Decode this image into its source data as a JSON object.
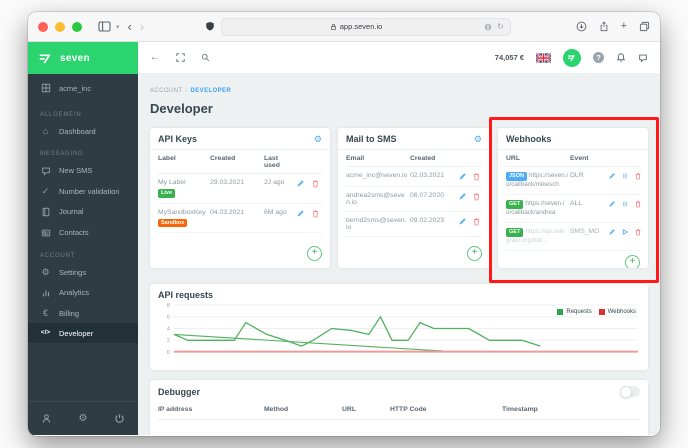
{
  "colors": {
    "brand_green": "#2bd46f",
    "sidebar_bg": "#2e3c43",
    "highlight_red": "#ff1a1a",
    "link_blue": "#3ba0f2",
    "badge_live": "#37b24d",
    "badge_sandbox": "#f76707",
    "badge_json": "#4dabf7",
    "badge_get": "#37b24d"
  },
  "icons": {
    "back_arrow": "←",
    "nav_back": "‹",
    "nav_forward": "›",
    "chevron_down": "▾",
    "reload": "↻",
    "plus": "+",
    "check": "✓",
    "home": "⌂",
    "gear": "⚙",
    "euro": "€",
    "code": "</>",
    "question": "?"
  },
  "browser": {
    "url": "app.seven.io"
  },
  "app_header": {
    "logo_text": "seven",
    "balance": "74,057 €"
  },
  "sidebar": {
    "workspace": "acme_inc",
    "sections": [
      {
        "title": "ALLGEMEIN",
        "items": [
          {
            "label": "Dashboard"
          }
        ]
      },
      {
        "title": "MESSAGING",
        "items": [
          {
            "label": "New SMS"
          },
          {
            "label": "Number validation"
          },
          {
            "label": "Journal"
          },
          {
            "label": "Contacts"
          }
        ]
      },
      {
        "title": "ACCOUNT",
        "items": [
          {
            "label": "Settings"
          },
          {
            "label": "Analytics"
          },
          {
            "label": "Billing"
          },
          {
            "label": "Developer",
            "active": true
          }
        ]
      }
    ]
  },
  "page": {
    "breadcrumb_parent": "ACCOUNT",
    "breadcrumb_sep": "/",
    "breadcrumb_current": "DEVELOPER",
    "title": "Developer"
  },
  "api_keys": {
    "title": "API Keys",
    "columns": [
      "Label",
      "Created",
      "Last used"
    ],
    "rows": [
      {
        "label": "My Label",
        "badge": "Live",
        "created": "29.03.2021",
        "last_used": "2J ago"
      },
      {
        "label": "MySandboxKey",
        "badge": "Sandbox",
        "created": "04.03.2021",
        "last_used": "6M ago"
      }
    ]
  },
  "mail_to_sms": {
    "title": "Mail to SMS",
    "columns": [
      "Email",
      "Created"
    ],
    "rows": [
      {
        "email": "acme_inc@seven.io",
        "created": "02.03.2021"
      },
      {
        "email": "andrea2sms@seven.io",
        "created": "06.07.2020"
      },
      {
        "email": "bernd2sms@seven.io",
        "created": "09.02.2023"
      }
    ]
  },
  "webhooks": {
    "title": "Webhooks",
    "columns": [
      "URL",
      "Event"
    ],
    "rows": [
      {
        "method": "JSON",
        "url": "https://seven.io/callback/mikesch",
        "event": "DLR",
        "state": "enabled"
      },
      {
        "method": "GET",
        "url": "https://seven.io/callback/andrea",
        "event": "ALL",
        "state": "enabled"
      },
      {
        "method": "GET",
        "url": "https://api.telegram.org/bot…",
        "event": "SMS_MO",
        "state": "disabled"
      }
    ]
  },
  "chart_data": {
    "type": "line",
    "title": "API requests",
    "xlabel": "",
    "ylabel": "",
    "ylim": [
      0,
      8
    ],
    "yticks": [
      0,
      2,
      4,
      6,
      8
    ],
    "x_axis_labels": "none",
    "grid": true,
    "legend_position": "top-right",
    "legend": [
      {
        "label": "Requests",
        "color": "#2fa44f"
      },
      {
        "label": "Webhooks",
        "color": "#e03131"
      }
    ],
    "series": [
      {
        "name": "Requests",
        "color": "#51b05e",
        "width": 1.3,
        "points": [
          [
            0,
            3
          ],
          [
            3,
            2
          ],
          [
            8,
            2
          ],
          [
            13,
            2
          ],
          [
            15.5,
            5
          ],
          [
            20,
            3
          ],
          [
            24,
            2
          ],
          [
            27.5,
            1
          ],
          [
            30,
            2
          ],
          [
            34,
            4
          ],
          [
            38,
            3.7
          ],
          [
            42,
            3
          ],
          [
            44.5,
            6
          ],
          [
            47,
            2
          ],
          [
            50.5,
            2
          ],
          [
            53,
            5
          ],
          [
            56,
            4
          ],
          [
            60,
            4
          ],
          [
            63.5,
            4
          ],
          [
            68,
            2
          ],
          [
            75,
            2
          ],
          [
            79,
            1
          ]
        ]
      },
      {
        "name": "Requests",
        "color": "#51b05e",
        "width": 1.1,
        "points": [
          [
            0,
            3
          ],
          [
            58,
            0.15
          ]
        ]
      },
      {
        "name": "Webhooks",
        "color": "#ef9a9a",
        "width": 2,
        "points": [
          [
            0,
            0.07
          ],
          [
            100,
            0.07
          ]
        ]
      }
    ]
  },
  "debugger": {
    "title": "Debugger",
    "columns": [
      "IP address",
      "Method",
      "URL",
      "HTTP Code",
      "Timestamp"
    ],
    "toggle_state": "off"
  }
}
